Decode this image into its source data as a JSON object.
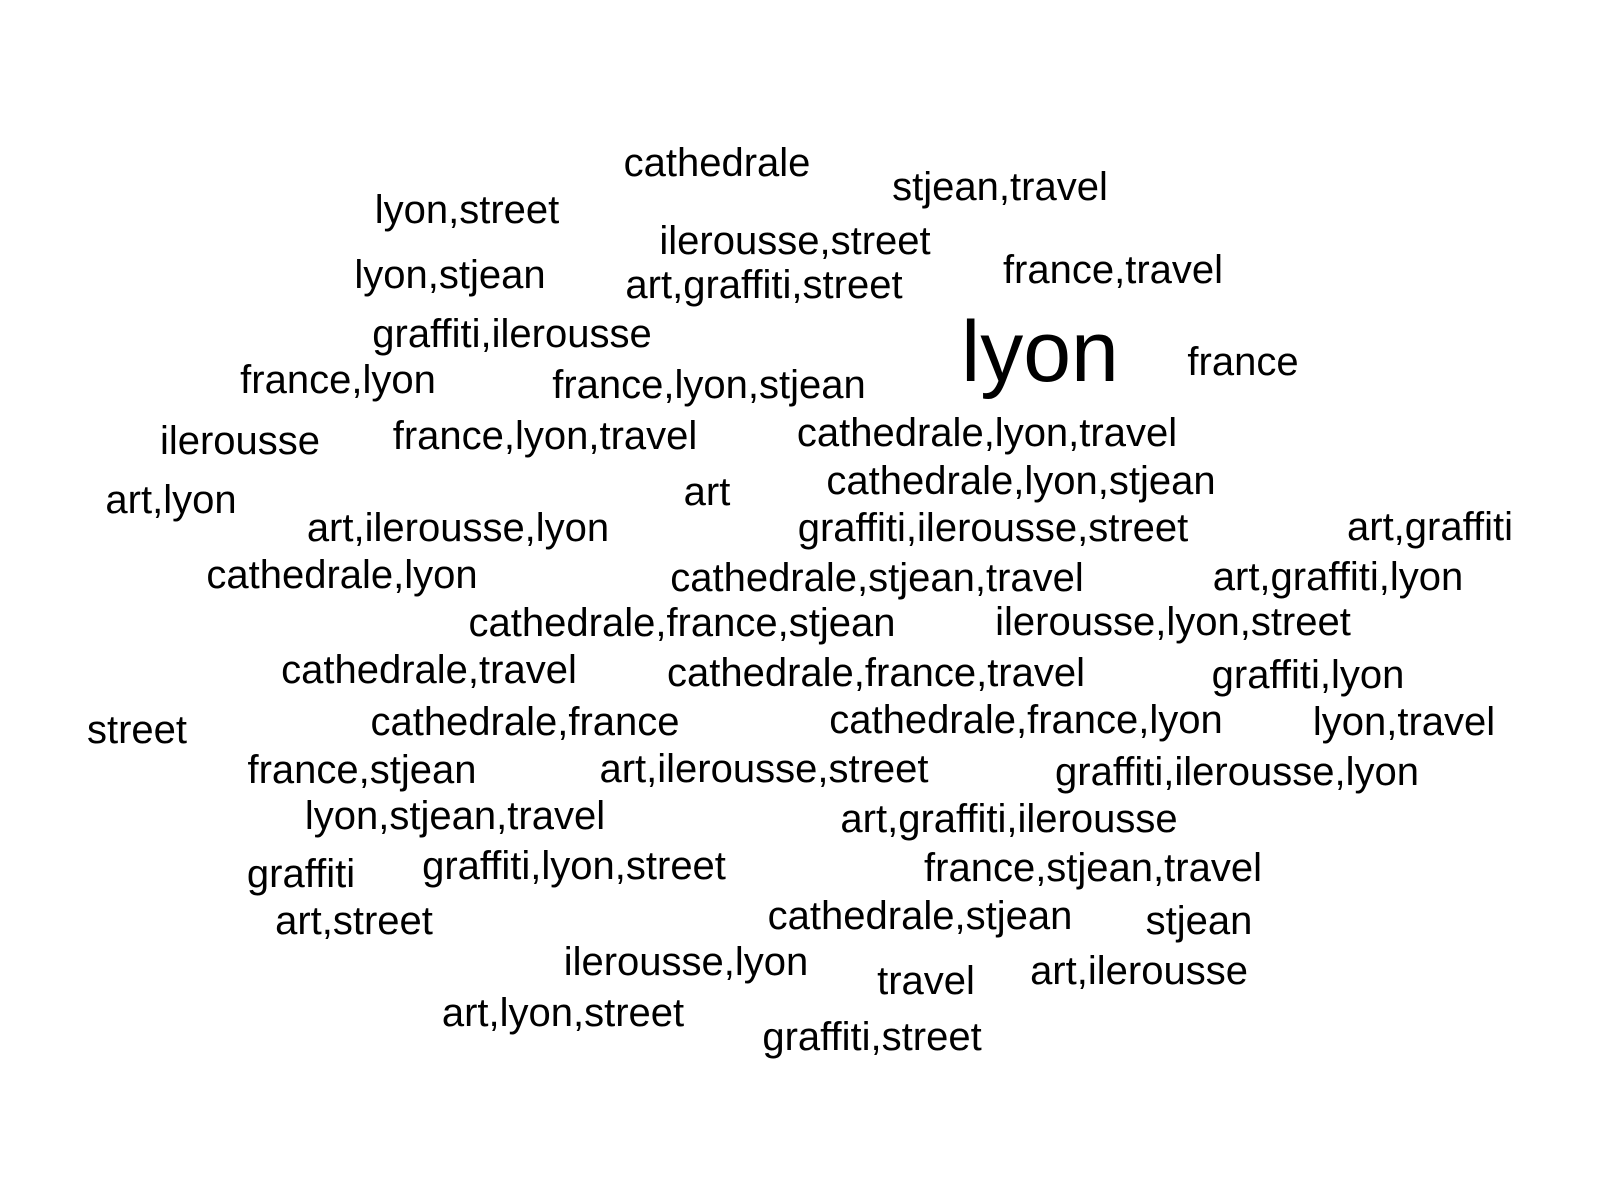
{
  "words": [
    "cathedrale",
    "stjean,travel",
    "lyon,street",
    "ilerousse,street",
    "lyon,stjean",
    "art,graffiti,street",
    "france,travel",
    "graffiti,ilerousse",
    "lyon",
    "france",
    "france,lyon",
    "france,lyon,stjean",
    "ilerousse",
    "france,lyon,travel",
    "cathedrale,lyon,travel",
    "art,lyon",
    "art",
    "cathedrale,lyon,stjean",
    "art,ilerousse,lyon",
    "graffiti,ilerousse,street",
    "art,graffiti",
    "cathedrale,lyon",
    "cathedrale,stjean,travel",
    "art,graffiti,lyon",
    "cathedrale,france,stjean",
    "ilerousse,lyon,street",
    "cathedrale,travel",
    "cathedrale,france,travel",
    "graffiti,lyon",
    "street",
    "cathedrale,france",
    "cathedrale,france,lyon",
    "lyon,travel",
    "france,stjean",
    "art,ilerousse,street",
    "graffiti,ilerousse,lyon",
    "lyon,stjean,travel",
    "art,graffiti,ilerousse",
    "graffiti",
    "graffiti,lyon,street",
    "france,stjean,travel",
    "art,street",
    "cathedrale,stjean",
    "stjean",
    "ilerousse,lyon",
    "travel",
    "art,ilerousse",
    "art,lyon,street",
    "graffiti,street"
  ],
  "colors": {
    "background": "#ffffff",
    "text": "#000000"
  }
}
